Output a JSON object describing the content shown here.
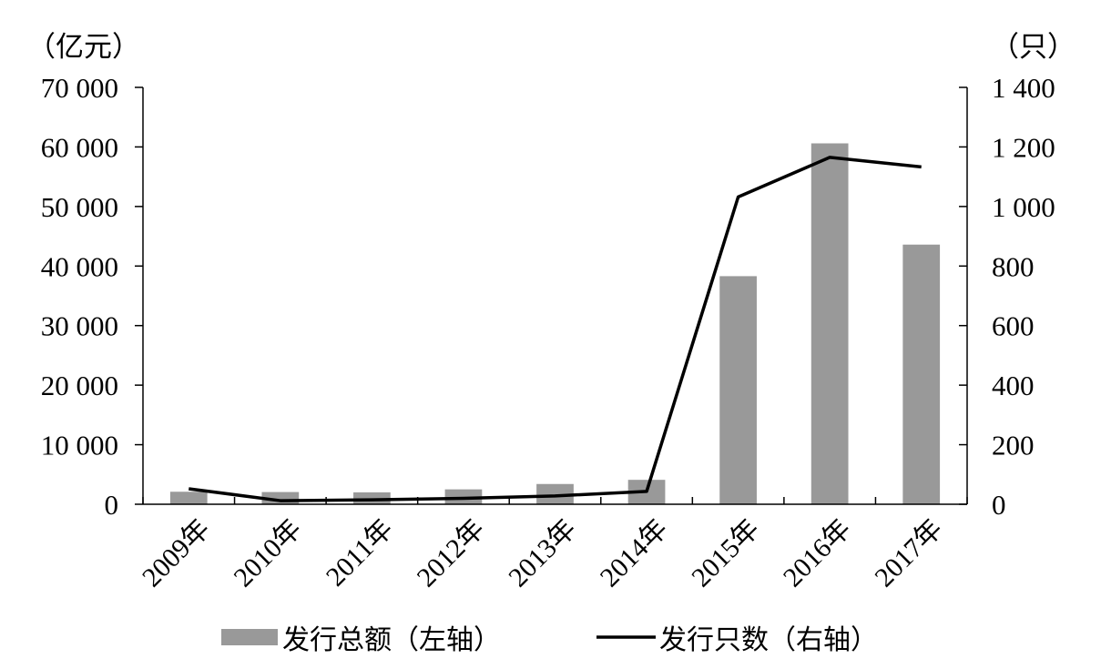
{
  "chart_data": {
    "type": "bar",
    "categories": [
      "2009年",
      "2010年",
      "2011年",
      "2012年",
      "2013年",
      "2014年",
      "2015年",
      "2016年",
      "2017年"
    ],
    "left_unit": "（亿元）",
    "right_unit": "（只）",
    "left_ticks": [
      0,
      10000,
      20000,
      30000,
      40000,
      50000,
      60000,
      70000
    ],
    "left_tick_labels": [
      "0",
      "10 000",
      "20 000",
      "30 000",
      "40 000",
      "50 000",
      "60 000",
      "70 000"
    ],
    "right_ticks": [
      0,
      200,
      400,
      600,
      800,
      1000,
      1200,
      1400
    ],
    "right_tick_labels": [
      "0",
      "200",
      "400",
      "600",
      "800",
      "1 000",
      "1 200",
      "1 400"
    ],
    "left_ylim": [
      0,
      70000
    ],
    "right_ylim": [
      0,
      1400
    ],
    "series": [
      {
        "name": "发行总额（左轴）",
        "kind": "bar",
        "axis": "left",
        "color": "#999999",
        "values": [
          2100,
          2050,
          2000,
          2500,
          3400,
          4100,
          38300,
          60600,
          43600
        ]
      },
      {
        "name": "发行只数（右轴）",
        "kind": "line",
        "axis": "right",
        "color": "#000000",
        "values": [
          52,
          12,
          15,
          20,
          28,
          43,
          1032,
          1165,
          1133
        ]
      }
    ],
    "legend_position": "bottom",
    "grid": false
  }
}
